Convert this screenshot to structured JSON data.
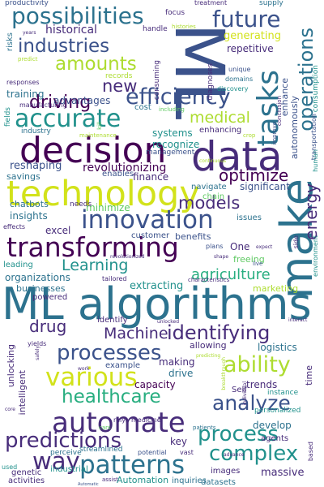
{
  "colors": {
    "background": "#ffffff",
    "palette": [
      "#440154",
      "#472c7a",
      "#3b528b",
      "#2c728e",
      "#21918c",
      "#28ae80",
      "#5ec962",
      "#addc30",
      "#d2e21b"
    ]
  },
  "words": [
    {
      "text": "ML algorithms",
      "color": "#2c728e"
    },
    {
      "text": "ML",
      "color": "#3b528b"
    },
    {
      "text": "data",
      "color": "#472c7a"
    },
    {
      "text": "make",
      "color": "#2c728e"
    },
    {
      "text": "technology",
      "color": "#d2e21b"
    },
    {
      "text": "decision",
      "color": "#440154"
    },
    {
      "text": "transforming",
      "color": "#440154"
    },
    {
      "text": "automate",
      "color": "#472c7a"
    },
    {
      "text": "innovation",
      "color": "#3b528b"
    },
    {
      "text": "tasks",
      "color": "#2c728e"
    },
    {
      "text": "accurate",
      "color": "#21918c"
    },
    {
      "text": "efficiency",
      "color": "#3b528b"
    },
    {
      "text": "possibilities",
      "color": "#2c728e"
    },
    {
      "text": "various",
      "color": "#d2e21b"
    },
    {
      "text": "patterns",
      "color": "#2c728e"
    },
    {
      "text": "analyze",
      "color": "#3b528b"
    },
    {
      "text": "processes",
      "color": "#3b528b"
    },
    {
      "text": "predictions",
      "color": "#472c7a"
    },
    {
      "text": "future",
      "color": "#3b528b"
    },
    {
      "text": "industries",
      "color": "#3b528b"
    },
    {
      "text": "amounts",
      "color": "#addc30"
    },
    {
      "text": "identifying",
      "color": "#472c7a"
    },
    {
      "text": "Machine",
      "color": "#472c7a"
    },
    {
      "text": "complex",
      "color": "#21918c"
    },
    {
      "text": "process",
      "color": "#21918c"
    },
    {
      "text": "way",
      "color": "#472c7a"
    },
    {
      "text": "ability",
      "color": "#addc30"
    },
    {
      "text": "healthcare",
      "color": "#28ae80"
    },
    {
      "text": "operations",
      "color": "#2c728e"
    },
    {
      "text": "driving",
      "color": "#440154"
    },
    {
      "text": "optimize",
      "color": "#440154"
    },
    {
      "text": "models",
      "color": "#472c7a"
    },
    {
      "text": "medical",
      "color": "#addc30"
    },
    {
      "text": "energy",
      "color": "#472c7a"
    },
    {
      "text": "new",
      "color": "#472c7a"
    },
    {
      "text": "Learning",
      "color": "#21918c"
    },
    {
      "text": "agriculture",
      "color": "#28ae80"
    },
    {
      "text": "drug",
      "color": "#472c7a"
    },
    {
      "text": "revolutionizing",
      "color": "#440154"
    },
    {
      "text": "historical",
      "color": "#472c7a"
    },
    {
      "text": "generating",
      "color": "#d2e21b"
    },
    {
      "text": "repetitive",
      "color": "#472c7a"
    },
    {
      "text": "advantages",
      "color": "#3b528b"
    },
    {
      "text": "training",
      "color": "#2c728e"
    },
    {
      "text": "systems",
      "color": "#21918c"
    },
    {
      "text": "recognize",
      "color": "#21918c"
    },
    {
      "text": "reshaping",
      "color": "#3b528b"
    },
    {
      "text": "finance",
      "color": "#472c7a"
    },
    {
      "text": "significant",
      "color": "#3b528b"
    },
    {
      "text": "insights",
      "color": "#2c728e"
    },
    {
      "text": "excel",
      "color": "#472c7a"
    },
    {
      "text": "organizations",
      "color": "#2c728e"
    },
    {
      "text": "businesses",
      "color": "#2c728e"
    },
    {
      "text": "extracting",
      "color": "#21918c"
    },
    {
      "text": "marketing",
      "color": "#addc30"
    },
    {
      "text": "capacity",
      "color": "#440154"
    },
    {
      "text": "drive",
      "color": "#2c728e"
    },
    {
      "text": "trends",
      "color": "#472c7a"
    },
    {
      "text": "develop",
      "color": "#2c728e"
    },
    {
      "text": "massive",
      "color": "#472c7a"
    },
    {
      "text": "Automation",
      "color": "#21918c"
    },
    {
      "text": "datasets",
      "color": "#2c728e"
    },
    {
      "text": "logistics",
      "color": "#2c728e"
    },
    {
      "text": "making",
      "color": "#472c7a"
    },
    {
      "text": "key",
      "color": "#472c7a"
    },
    {
      "text": "enhancing",
      "color": "#472c7a"
    },
    {
      "text": "productivity",
      "color": "#3b528b"
    },
    {
      "text": "focus",
      "color": "#472c7a"
    },
    {
      "text": "supply",
      "color": "#2c728e"
    },
    {
      "text": "enhance",
      "color": "#3b528b"
    },
    {
      "text": "autonomously",
      "color": "#3b528b"
    },
    {
      "text": "consumption",
      "color": "#21918c"
    },
    {
      "text": "transportation",
      "color": "#3b528b"
    },
    {
      "text": "time",
      "color": "#472c7a"
    },
    {
      "text": "One",
      "color": "#472c7a"
    },
    {
      "text": "freeing",
      "color": "#5ec962"
    },
    {
      "text": "benefits",
      "color": "#3b528b"
    },
    {
      "text": "customer",
      "color": "#3b528b"
    },
    {
      "text": "minimize",
      "color": "#5ec962"
    },
    {
      "text": "chatbots",
      "color": "#2c728e"
    },
    {
      "text": "savings",
      "color": "#2c728e"
    },
    {
      "text": "enables",
      "color": "#3b528b"
    },
    {
      "text": "navigate",
      "color": "#2c728e"
    },
    {
      "text": "chain",
      "color": "#5ec962"
    },
    {
      "text": "issues",
      "color": "#2c728e"
    },
    {
      "text": "needs",
      "color": "#472c7a"
    },
    {
      "text": "cost",
      "color": "#2c728e"
    },
    {
      "text": "risks",
      "color": "#2c728e"
    },
    {
      "text": "unlocking",
      "color": "#472c7a"
    },
    {
      "text": "intelligent",
      "color": "#472c7a"
    },
    {
      "text": "industrial",
      "color": "#21918c"
    },
    {
      "text": "genetic",
      "color": "#472c7a"
    },
    {
      "text": "perceive",
      "color": "#2c728e"
    },
    {
      "text": "activities",
      "color": "#472c7a"
    },
    {
      "text": "streamlined",
      "color": "#2c728e"
    },
    {
      "text": "inquiries",
      "color": "#2c728e"
    },
    {
      "text": "images",
      "color": "#472c7a"
    },
    {
      "text": "agents",
      "color": "#472c7a"
    },
    {
      "text": "personalized",
      "color": "#21918c"
    },
    {
      "text": "Self",
      "color": "#472c7a"
    },
    {
      "text": "instance",
      "color": "#21918c"
    },
    {
      "text": "example",
      "color": "#3b528b"
    },
    {
      "text": "allowing",
      "color": "#472c7a"
    },
    {
      "text": "identify",
      "color": "#472c7a"
    },
    {
      "text": "powered",
      "color": "#472c7a"
    },
    {
      "text": "leading",
      "color": "#21918c"
    },
    {
      "text": "handle",
      "color": "#472c7a"
    },
    {
      "text": "records",
      "color": "#addc30"
    },
    {
      "text": "diagnoses",
      "color": "#472c7a"
    },
    {
      "text": "consuming",
      "color": "#472c7a"
    },
    {
      "text": "manufacturing",
      "color": "#472c7a"
    },
    {
      "text": "industry",
      "color": "#2c728e"
    },
    {
      "text": "fields",
      "color": "#21918c"
    },
    {
      "text": "responses",
      "color": "#472c7a"
    },
    {
      "text": "predict",
      "color": "#addc30"
    },
    {
      "text": "treatment",
      "color": "#472c7a"
    },
    {
      "text": "histories",
      "color": "#addc30"
    },
    {
      "text": "unique",
      "color": "#3b528b"
    },
    {
      "text": "domains",
      "color": "#2c728e"
    },
    {
      "text": "discovery",
      "color": "#21918c"
    },
    {
      "text": "including",
      "color": "#5ec962"
    },
    {
      "text": "conclusion",
      "color": "#472c7a"
    },
    {
      "text": "improve",
      "color": "#3b528b"
    },
    {
      "text": "human",
      "color": "#21918c"
    },
    {
      "text": "management",
      "color": "#3b528b"
    },
    {
      "text": "maintenance",
      "color": "#addc30"
    },
    {
      "text": "crop",
      "color": "#addc30"
    },
    {
      "text": "kill",
      "color": "#5ec962"
    },
    {
      "text": "years",
      "color": "#472c7a"
    },
    {
      "text": "effects",
      "color": "#472c7a"
    },
    {
      "text": "side",
      "color": "#472c7a"
    },
    {
      "text": "plans",
      "color": "#3b528b"
    },
    {
      "text": "expect",
      "color": "#472c7a"
    },
    {
      "text": "live",
      "color": "#3b528b"
    },
    {
      "text": "environment",
      "color": "#21918c"
    },
    {
      "text": "shape",
      "color": "#472c7a"
    },
    {
      "text": "revolutionized",
      "color": "#472c7a"
    },
    {
      "text": "tailored",
      "color": "#472c7a"
    },
    {
      "text": "characteristics",
      "color": "#472c7a"
    },
    {
      "text": "unlocked",
      "color": "#472c7a"
    },
    {
      "text": "interact",
      "color": "#472c7a"
    },
    {
      "text": "yields",
      "color": "#472c7a"
    },
    {
      "text": "safely",
      "color": "#472c7a"
    },
    {
      "text": "work",
      "color": "#472c7a"
    },
    {
      "text": "predicting",
      "color": "#addc30"
    },
    {
      "text": "rely",
      "color": "#472c7a"
    },
    {
      "text": "medicine",
      "color": "#472c7a"
    },
    {
      "text": "patients",
      "color": "#2c728e"
    },
    {
      "text": "individual",
      "color": "#472c7a"
    },
    {
      "text": "core",
      "color": "#472c7a"
    },
    {
      "text": "cars",
      "color": "#5ec962"
    },
    {
      "text": "potential",
      "color": "#3b528b"
    },
    {
      "text": "vast",
      "color": "#472c7a"
    },
    {
      "text": "assist",
      "color": "#472c7a"
    },
    {
      "text": "used",
      "color": "#21918c"
    },
    {
      "text": "advance",
      "color": "#472c7a"
    },
    {
      "text": "based",
      "color": "#472c7a"
    },
    {
      "text": "Automatic",
      "color": "#3b528b"
    },
    {
      "text": "breakthrough",
      "color": "#addc30"
    },
    {
      "text": "continuous",
      "color": "#addc30"
    }
  ]
}
